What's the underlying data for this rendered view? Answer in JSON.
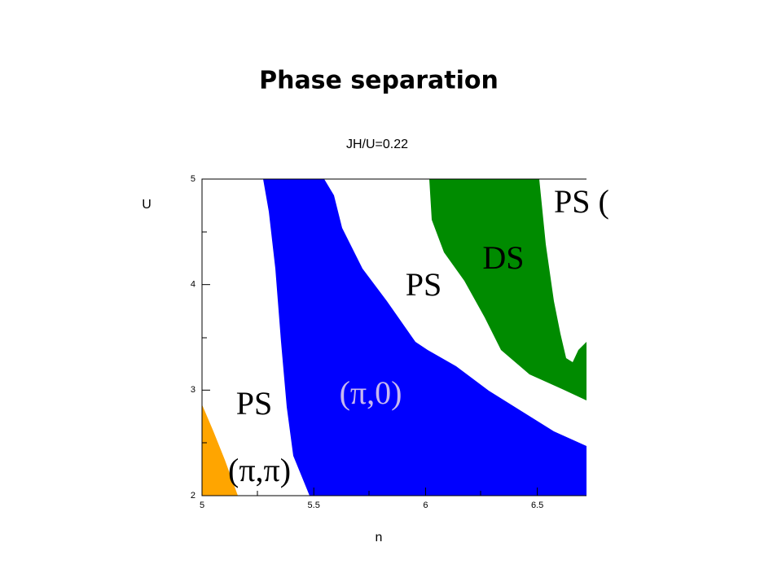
{
  "chart_data": {
    "type": "phase-diagram",
    "title": "Phase separation",
    "subtitle": "JH/U=0.22",
    "xlabel": "n",
    "ylabel": "U",
    "xlim": [
      5,
      6.72
    ],
    "ylim": [
      2,
      5
    ],
    "xticks": [
      5,
      5.5,
      6,
      6.5
    ],
    "yticks": [
      2,
      3,
      4,
      5
    ],
    "region_labels": [
      "(π,π)",
      "PS",
      "(π,0)",
      "PS",
      "DS",
      "PS ("
    ]
  }
}
